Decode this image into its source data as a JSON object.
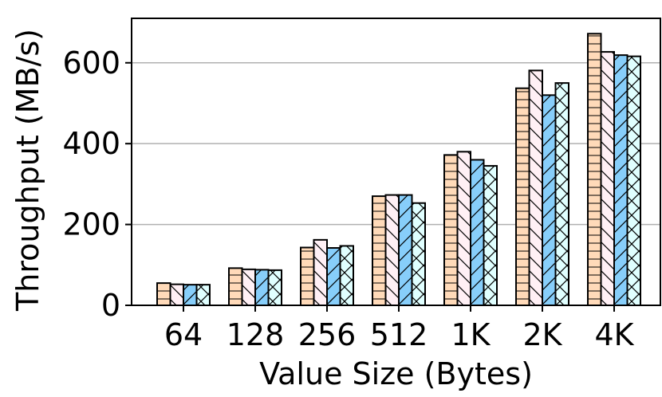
{
  "chart_data": {
    "type": "bar",
    "title": "",
    "xlabel": "Value Size (Bytes)",
    "ylabel": "Throughput (MB/s)",
    "categories": [
      "64",
      "128",
      "256",
      "512",
      "1K",
      "2K",
      "4K"
    ],
    "ylim": [
      0,
      710
    ],
    "yticks": [
      0,
      200,
      400,
      600
    ],
    "grid": "y",
    "legend": "none",
    "series": [
      {
        "values": [
          55,
          92,
          143,
          270,
          372,
          537,
          672
        ],
        "color": "#FFDAB9",
        "pattern": "horizontal-hatch"
      },
      {
        "values": [
          52,
          89,
          162,
          273,
          380,
          581,
          627
        ],
        "color": "#FFF0F5",
        "pattern": "backslash-hatch"
      },
      {
        "values": [
          51,
          88,
          142,
          273,
          360,
          520,
          619
        ],
        "color": "#87CEFA",
        "pattern": "slash-hatch"
      },
      {
        "values": [
          51,
          87,
          147,
          253,
          345,
          550,
          616
        ],
        "color": "#E0FFFF",
        "pattern": "cross-hatch"
      }
    ]
  }
}
